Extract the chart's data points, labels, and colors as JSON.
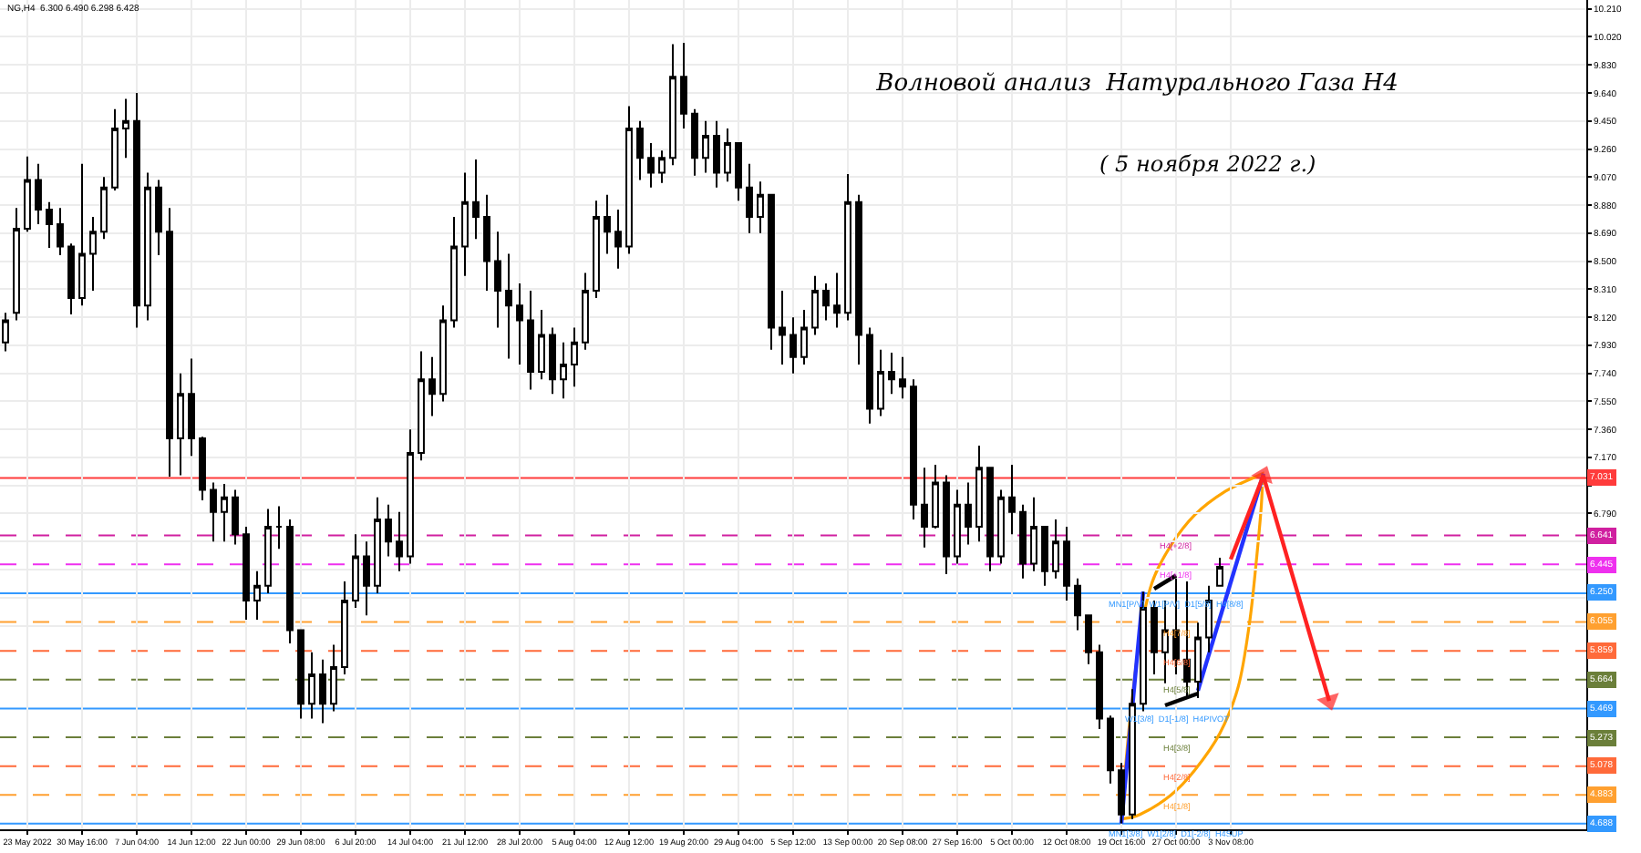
{
  "chart_data": {
    "type": "candlestick",
    "title": "Волновой анализ  Натурального Газа H4",
    "subtitle": "( 5 ноября 2022 г.)",
    "color": "#000000",
    "annotations": [
      "NG,H4  6.300 6.490 6.298 6.428",
      {
        "text": "H4[+2/8]",
        "y": 6.641
      },
      {
        "text": "H4[+1/8]",
        "y": 6.445
      },
      {
        "text": "MN1[P/V]  W1[P/V]  D1[5/8]  H4[8/8]",
        "y": 6.25
      },
      {
        "text": "H4[7/8]",
        "y": 6.055
      },
      {
        "text": "H4[6/8]",
        "y": 5.859
      },
      {
        "text": "H4[5/8]",
        "y": 5.664
      },
      {
        "text": "W1[3/8]  D1[-1/8]  H4PIVOT",
        "y": 5.469
      },
      {
        "text": "H4[3/8]",
        "y": 5.273
      },
      {
        "text": "H4[2/8]",
        "y": 5.078
      },
      {
        "text": "H4[1/8]",
        "y": 4.883
      },
      {
        "text": "MN1[3/8]  W1[2/8]  D1[-2/8]  H4SUP",
        "y": 4.688
      }
    ],
    "categories": [
      null,
      null,
      "23 May 2022",
      null,
      null,
      null,
      null,
      "30 May 16:00",
      null,
      null,
      null,
      null,
      "7 Jun 04:00",
      null,
      null,
      null,
      null,
      "14 Jun 12:00",
      null,
      null,
      null,
      null,
      "22 Jun 00:00",
      null,
      null,
      null,
      null,
      "29 Jun 08:00",
      null,
      null,
      null,
      null,
      "6 Jul 20:00",
      null,
      null,
      null,
      null,
      "14 Jul 04:00",
      null,
      null,
      null,
      null,
      "21 Jul 12:00",
      null,
      null,
      null,
      null,
      "28 Jul 20:00",
      null,
      null,
      null,
      null,
      "5 Aug 04:00",
      null,
      null,
      null,
      null,
      "12 Aug 12:00",
      null,
      null,
      null,
      null,
      "19 Aug 20:00",
      null,
      null,
      null,
      null,
      "29 Aug 04:00",
      null,
      null,
      null,
      null,
      "5 Sep 12:00",
      null,
      null,
      null,
      null,
      "13 Sep 00:00",
      null,
      null,
      null,
      null,
      "20 Sep 08:00",
      null,
      null,
      null,
      null,
      "27 Sep 16:00",
      null,
      null,
      null,
      null,
      "5 Oct 00:00",
      null,
      null,
      null,
      null,
      "12 Oct 08:00",
      null,
      null,
      null,
      null,
      "19 Oct 16:00",
      null,
      null,
      null,
      null,
      "27 Oct 00:00",
      null,
      null,
      null,
      null,
      "3 Nov 08:00",
      null,
      null,
      null,
      null,
      null,
      null,
      null,
      null,
      null,
      null,
      null,
      null,
      null,
      null,
      null,
      null,
      null,
      null,
      null,
      null,
      null,
      null,
      null,
      null,
      null,
      null,
      null,
      null,
      null,
      null,
      null,
      null
    ],
    "ohlc": [
      [
        7.95,
        8.15,
        7.89,
        8.1
      ],
      [
        8.15,
        8.86,
        8.1,
        8.72
      ],
      [
        8.72,
        9.21,
        8.7,
        9.05
      ],
      [
        9.05,
        9.16,
        8.75,
        8.85
      ],
      [
        8.85,
        8.9,
        8.59,
        8.75
      ],
      [
        8.75,
        8.86,
        8.54,
        8.6
      ],
      [
        8.6,
        8.62,
        8.14,
        8.25
      ],
      [
        8.25,
        9.16,
        8.2,
        8.55
      ],
      [
        8.55,
        8.8,
        8.3,
        8.7
      ],
      [
        8.7,
        9.07,
        8.65,
        9.0
      ],
      [
        9.0,
        9.53,
        8.98,
        9.4
      ],
      [
        9.4,
        9.6,
        9.2,
        9.45
      ],
      [
        9.45,
        9.64,
        8.05,
        8.2
      ],
      [
        8.2,
        9.1,
        8.1,
        9.0
      ],
      [
        9.0,
        9.05,
        8.54,
        8.7
      ],
      [
        8.7,
        8.86,
        7.04,
        7.3
      ],
      [
        7.3,
        7.74,
        7.05,
        7.6
      ],
      [
        7.6,
        7.84,
        7.18,
        7.3
      ],
      [
        7.3,
        7.31,
        6.88,
        6.95
      ],
      [
        6.95,
        7.0,
        6.6,
        6.8
      ],
      [
        6.8,
        6.99,
        6.6,
        6.9
      ],
      [
        6.9,
        6.95,
        6.58,
        6.65
      ],
      [
        6.65,
        6.7,
        6.07,
        6.2
      ],
      [
        6.2,
        6.4,
        6.07,
        6.3
      ],
      [
        6.3,
        6.82,
        6.25,
        6.7
      ],
      [
        6.7,
        6.84,
        6.55,
        6.7
      ],
      [
        6.7,
        6.75,
        5.91,
        6.0
      ],
      [
        6.0,
        6.0,
        5.4,
        5.5
      ],
      [
        5.5,
        5.85,
        5.4,
        5.7
      ],
      [
        5.7,
        5.8,
        5.37,
        5.5
      ],
      [
        5.5,
        5.9,
        5.45,
        5.75
      ],
      [
        5.75,
        6.33,
        5.7,
        6.2
      ],
      [
        6.2,
        6.65,
        6.15,
        6.5
      ],
      [
        6.5,
        6.6,
        6.1,
        6.3
      ],
      [
        6.3,
        6.9,
        6.25,
        6.75
      ],
      [
        6.75,
        6.85,
        6.5,
        6.6
      ],
      [
        6.6,
        6.8,
        6.4,
        6.5
      ],
      [
        6.5,
        7.36,
        6.45,
        7.2
      ],
      [
        7.2,
        7.89,
        7.15,
        7.7
      ],
      [
        7.7,
        7.85,
        7.45,
        7.6
      ],
      [
        7.6,
        8.2,
        7.55,
        8.1
      ],
      [
        8.1,
        8.8,
        8.05,
        8.6
      ],
      [
        8.6,
        9.1,
        8.4,
        8.9
      ],
      [
        8.9,
        9.19,
        8.65,
        8.8
      ],
      [
        8.8,
        8.95,
        8.3,
        8.5
      ],
      [
        8.5,
        8.7,
        8.05,
        8.3
      ],
      [
        8.3,
        8.55,
        7.84,
        8.2
      ],
      [
        8.2,
        8.35,
        7.8,
        8.1
      ],
      [
        8.1,
        8.3,
        7.63,
        7.75
      ],
      [
        7.75,
        8.17,
        7.7,
        8.0
      ],
      [
        8.0,
        8.05,
        7.6,
        7.7
      ],
      [
        7.7,
        7.95,
        7.57,
        7.8
      ],
      [
        7.8,
        8.05,
        7.65,
        7.95
      ],
      [
        7.95,
        8.42,
        7.9,
        8.3
      ],
      [
        8.3,
        8.91,
        8.25,
        8.8
      ],
      [
        8.8,
        8.95,
        8.55,
        8.7
      ],
      [
        8.7,
        8.85,
        8.45,
        8.6
      ],
      [
        8.6,
        9.55,
        8.55,
        9.4
      ],
      [
        9.4,
        9.45,
        9.05,
        9.2
      ],
      [
        9.2,
        9.3,
        9.0,
        9.1
      ],
      [
        9.1,
        9.25,
        9.03,
        9.2
      ],
      [
        9.2,
        9.97,
        9.15,
        9.75
      ],
      [
        9.75,
        9.98,
        9.4,
        9.5
      ],
      [
        9.5,
        9.53,
        9.08,
        9.2
      ],
      [
        9.2,
        9.45,
        9.1,
        9.35
      ],
      [
        9.35,
        9.45,
        9.0,
        9.1
      ],
      [
        9.1,
        9.4,
        9.04,
        9.3
      ],
      [
        9.3,
        9.3,
        8.91,
        9.0
      ],
      [
        9.0,
        9.16,
        8.69,
        8.8
      ],
      [
        8.8,
        9.04,
        8.69,
        8.95
      ],
      [
        8.95,
        8.95,
        7.9,
        8.05
      ],
      [
        8.05,
        8.3,
        7.8,
        8.0
      ],
      [
        8.0,
        8.12,
        7.74,
        7.85
      ],
      [
        7.85,
        8.17,
        7.8,
        8.05
      ],
      [
        8.05,
        8.4,
        8.0,
        8.3
      ],
      [
        8.3,
        8.35,
        8.1,
        8.2
      ],
      [
        8.2,
        8.42,
        8.05,
        8.15
      ],
      [
        8.15,
        9.09,
        8.1,
        8.9
      ],
      [
        8.9,
        8.95,
        7.8,
        8.0
      ],
      [
        8.0,
        8.05,
        7.4,
        7.5
      ],
      [
        7.5,
        7.9,
        7.45,
        7.75
      ],
      [
        7.75,
        7.88,
        7.6,
        7.7
      ],
      [
        7.7,
        7.85,
        7.57,
        7.65
      ],
      [
        7.65,
        7.7,
        6.75,
        6.85
      ],
      [
        6.85,
        7.1,
        6.56,
        6.7
      ],
      [
        6.7,
        7.12,
        6.69,
        7.0
      ],
      [
        7.0,
        7.05,
        6.38,
        6.5
      ],
      [
        6.5,
        6.95,
        6.45,
        6.85
      ],
      [
        6.85,
        7.0,
        6.58,
        6.7
      ],
      [
        6.7,
        7.25,
        6.6,
        7.1
      ],
      [
        7.1,
        7.1,
        6.4,
        6.5
      ],
      [
        6.5,
        6.95,
        6.45,
        6.9
      ],
      [
        6.9,
        7.12,
        6.65,
        6.8
      ],
      [
        6.8,
        6.85,
        6.35,
        6.45
      ],
      [
        6.45,
        6.9,
        6.4,
        6.7
      ],
      [
        6.7,
        6.7,
        6.3,
        6.4
      ],
      [
        6.4,
        6.75,
        6.35,
        6.6
      ],
      [
        6.6,
        6.7,
        6.2,
        6.3
      ],
      [
        6.3,
        6.35,
        6.0,
        6.1
      ],
      [
        6.1,
        6.1,
        5.77,
        5.85
      ],
      [
        5.85,
        5.9,
        5.33,
        5.4
      ],
      [
        5.4,
        5.42,
        4.96,
        5.05
      ],
      [
        5.05,
        5.1,
        4.69,
        4.75
      ],
      [
        4.75,
        5.6,
        4.72,
        5.5
      ],
      [
        5.5,
        6.26,
        5.45,
        6.15
      ],
      [
        6.15,
        6.2,
        5.7,
        5.85
      ],
      [
        5.85,
        6.2,
        5.64,
        6.0
      ],
      [
        6.0,
        6.35,
        5.7,
        5.8
      ],
      [
        5.8,
        6.33,
        5.55,
        5.65
      ],
      [
        5.65,
        6.05,
        5.54,
        5.95
      ],
      [
        5.95,
        6.3,
        5.85,
        6.2
      ],
      [
        6.3,
        6.49,
        6.298,
        6.428
      ],
      null,
      null,
      null,
      null,
      null,
      null,
      null,
      null,
      null,
      null,
      null,
      null,
      null,
      null,
      null,
      null,
      null,
      null,
      null,
      null,
      null,
      null,
      null,
      null,
      null,
      null,
      null,
      null,
      null,
      null,
      null,
      null,
      null
    ],
    "ylim": [
      4.65,
      10.27
    ],
    "yticks": [
      {
        "value": 10.21,
        "label": "10.210"
      },
      {
        "value": 10.02,
        "label": "10.020"
      },
      {
        "value": 9.83,
        "label": "9.830"
      },
      {
        "value": 9.64,
        "label": "9.640"
      },
      {
        "value": 9.45,
        "label": "9.450"
      },
      {
        "value": 9.26,
        "label": "9.260"
      },
      {
        "value": 9.07,
        "label": "9.070"
      },
      {
        "value": 8.88,
        "label": "8.880"
      },
      {
        "value": 8.69,
        "label": "8.690"
      },
      {
        "value": 8.5,
        "label": "8.500"
      },
      {
        "value": 8.31,
        "label": "8.310"
      },
      {
        "value": 8.12,
        "label": "8.120"
      },
      {
        "value": 7.93,
        "label": "7.930"
      },
      {
        "value": 7.74,
        "label": "7.740"
      },
      {
        "value": 7.55,
        "label": "7.550"
      },
      {
        "value": 7.36,
        "label": "7.360"
      },
      {
        "value": 7.17,
        "label": "7.170"
      },
      {
        "value": 6.98,
        "label": null
      },
      {
        "value": 6.79,
        "label": "6.790"
      },
      {
        "value": 6.6,
        "label": null
      },
      {
        "value": 6.41,
        "label": null
      },
      {
        "value": 6.22,
        "label": null
      },
      {
        "value": 6.03,
        "label": null
      }
    ],
    "grid": true,
    "ref_lines": [
      {
        "axis": "y",
        "value": 7.031,
        "label": "7.031",
        "color": "#ff3b3b",
        "line_style": "solid"
      },
      {
        "axis": "y",
        "value": 6.641,
        "label": "6.641",
        "color": "#d020a0",
        "line_style": "dashed"
      },
      {
        "axis": "y",
        "value": 6.445,
        "label": "6.445",
        "color": "#ee30ee",
        "line_style": "dashed"
      },
      {
        "axis": "y",
        "value": 6.25,
        "label": "6.250",
        "color": "#3399ff",
        "line_style": "solid"
      },
      {
        "axis": "y",
        "value": 6.055,
        "label": "6.055",
        "color": "#ffa030",
        "line_style": "dashed"
      },
      {
        "axis": "y",
        "value": 5.859,
        "label": "5.859",
        "color": "#ff6a3a",
        "line_style": "dashed"
      },
      {
        "axis": "y",
        "value": 5.664,
        "label": "5.664",
        "color": "#6b7f3a",
        "line_style": "dashed"
      },
      {
        "axis": "y",
        "value": 5.469,
        "label": "5.469",
        "color": "#3399ff",
        "line_style": "solid"
      },
      {
        "axis": "y",
        "value": 5.273,
        "label": "5.273",
        "color": "#6b7f3a",
        "line_style": "dashed"
      },
      {
        "axis": "y",
        "value": 5.078,
        "label": "5.078",
        "color": "#ff6a3a",
        "line_style": "dashed"
      },
      {
        "axis": "y",
        "value": 4.883,
        "label": "4.883",
        "color": "#ffa030",
        "line_style": "dashed"
      },
      {
        "axis": "y",
        "value": 4.688,
        "label": "4.688",
        "color": "#3399ff",
        "line_style": "solid"
      }
    ],
    "series": [
      {
        "type": "line",
        "color": "#2233ff",
        "values": [
          null,
          null,
          null,
          null,
          null,
          null,
          null,
          null,
          null,
          null,
          null,
          null,
          null,
          null,
          null,
          null,
          null,
          null,
          null,
          null,
          null,
          null,
          null,
          null,
          null,
          null,
          null,
          null,
          null,
          null,
          null,
          null,
          null,
          null,
          null,
          null,
          null,
          null,
          null,
          null,
          null,
          null,
          null,
          null,
          null,
          null,
          null,
          null,
          null,
          null,
          null,
          null,
          null,
          null,
          null,
          null,
          null,
          null,
          null,
          null,
          null,
          null,
          null,
          null,
          null,
          null,
          null,
          null,
          null,
          null,
          null,
          null,
          null,
          null,
          null,
          null,
          null,
          null,
          null,
          null,
          null,
          null,
          null,
          null,
          null,
          null,
          null,
          null,
          null,
          null,
          null,
          null,
          null,
          null,
          null,
          null,
          null,
          null,
          null,
          null,
          null,
          null,
          4.69,
          null,
          6.26,
          null,
          null,
          null,
          null,
          null,
          null,
          null,
          null,
          null,
          null,
          null,
          null,
          null,
          null,
          null,
          null,
          null,
          null,
          null,
          null,
          null,
          null,
          null,
          null,
          null,
          null,
          null,
          null,
          null,
          null,
          null,
          null,
          null,
          null,
          null,
          null,
          null,
          null,
          null,
          null
        ]
      },
      {
        "type": "line",
        "color": "#2233ff",
        "values": [
          null,
          null,
          null,
          null,
          null,
          null,
          null,
          null,
          null,
          null,
          null,
          null,
          null,
          null,
          null,
          null,
          null,
          null,
          null,
          null,
          null,
          null,
          null,
          null,
          null,
          null,
          null,
          null,
          null,
          null,
          null,
          null,
          null,
          null,
          null,
          null,
          null,
          null,
          null,
          null,
          null,
          null,
          null,
          null,
          null,
          null,
          null,
          null,
          null,
          null,
          null,
          null,
          null,
          null,
          null,
          null,
          null,
          null,
          null,
          null,
          null,
          null,
          null,
          null,
          null,
          null,
          null,
          null,
          null,
          null,
          null,
          null,
          null,
          null,
          null,
          null,
          null,
          null,
          null,
          null,
          null,
          null,
          null,
          null,
          null,
          null,
          null,
          null,
          null,
          null,
          null,
          null,
          null,
          null,
          null,
          null,
          null,
          null,
          null,
          null,
          null,
          null,
          null,
          null,
          null,
          null,
          null,
          null,
          null,
          5.59,
          null,
          null,
          null,
          null,
          null,
          7.06,
          null,
          null,
          null,
          null,
          null,
          null,
          null,
          null,
          null,
          null,
          null,
          null,
          null,
          null,
          null,
          null,
          null,
          null,
          null,
          null,
          null,
          null,
          null,
          null,
          null,
          null,
          null,
          null,
          null
        ]
      },
      {
        "type": "line",
        "color": "#000000",
        "values": [
          null,
          null,
          null,
          null,
          null,
          null,
          null,
          null,
          null,
          null,
          null,
          null,
          null,
          null,
          null,
          null,
          null,
          null,
          null,
          null,
          null,
          null,
          null,
          null,
          null,
          null,
          null,
          null,
          null,
          null,
          null,
          null,
          null,
          null,
          null,
          null,
          null,
          null,
          null,
          null,
          null,
          null,
          null,
          null,
          null,
          null,
          null,
          null,
          null,
          null,
          null,
          null,
          null,
          null,
          null,
          null,
          null,
          null,
          null,
          null,
          null,
          null,
          null,
          null,
          null,
          null,
          null,
          null,
          null,
          null,
          null,
          null,
          null,
          null,
          null,
          null,
          null,
          null,
          null,
          null,
          null,
          null,
          null,
          null,
          null,
          null,
          null,
          null,
          null,
          null,
          null,
          null,
          null,
          null,
          null,
          null,
          null,
          null,
          null,
          null,
          null,
          null,
          null,
          null,
          null,
          6.28,
          null,
          6.37,
          null,
          null,
          null,
          null,
          null,
          null,
          null,
          null,
          null,
          null,
          null,
          null,
          null,
          null,
          null,
          null,
          null,
          null,
          null,
          null,
          null,
          null,
          null,
          null,
          null,
          null,
          null,
          null,
          null,
          null,
          null,
          null,
          null,
          null,
          null,
          null,
          null
        ]
      },
      {
        "type": "line",
        "color": "#000000",
        "values": [
          null,
          null,
          null,
          null,
          null,
          null,
          null,
          null,
          null,
          null,
          null,
          null,
          null,
          null,
          null,
          null,
          null,
          null,
          null,
          null,
          null,
          null,
          null,
          null,
          null,
          null,
          null,
          null,
          null,
          null,
          null,
          null,
          null,
          null,
          null,
          null,
          null,
          null,
          null,
          null,
          null,
          null,
          null,
          null,
          null,
          null,
          null,
          null,
          null,
          null,
          null,
          null,
          null,
          null,
          null,
          null,
          null,
          null,
          null,
          null,
          null,
          null,
          null,
          null,
          null,
          null,
          null,
          null,
          null,
          null,
          null,
          null,
          null,
          null,
          null,
          null,
          null,
          null,
          null,
          null,
          null,
          null,
          null,
          null,
          null,
          null,
          null,
          null,
          null,
          null,
          null,
          null,
          null,
          null,
          null,
          null,
          null,
          null,
          null,
          null,
          null,
          null,
          null,
          null,
          null,
          null,
          5.49,
          null,
          null,
          5.57,
          null,
          null,
          null,
          null,
          null,
          null,
          null,
          null,
          null,
          null,
          null,
          null,
          null,
          null,
          null,
          null,
          null,
          null,
          null,
          null,
          null,
          null,
          null,
          null,
          null,
          null,
          null,
          null,
          null,
          null,
          null,
          null,
          null,
          null,
          null
        ]
      },
      {
        "type": "line",
        "color": "#ff2222",
        "marker": "triangle",
        "values": [
          null,
          null,
          null,
          null,
          null,
          null,
          null,
          null,
          null,
          null,
          null,
          null,
          null,
          null,
          null,
          null,
          null,
          null,
          null,
          null,
          null,
          null,
          null,
          null,
          null,
          null,
          null,
          null,
          null,
          null,
          null,
          null,
          null,
          null,
          null,
          null,
          null,
          null,
          null,
          null,
          null,
          null,
          null,
          null,
          null,
          null,
          null,
          null,
          null,
          null,
          null,
          null,
          null,
          null,
          null,
          null,
          null,
          null,
          null,
          null,
          null,
          null,
          null,
          null,
          null,
          null,
          null,
          null,
          null,
          null,
          null,
          null,
          null,
          null,
          null,
          null,
          null,
          null,
          null,
          null,
          null,
          null,
          null,
          null,
          null,
          null,
          null,
          null,
          null,
          null,
          null,
          null,
          null,
          null,
          null,
          null,
          null,
          null,
          null,
          null,
          null,
          null,
          null,
          null,
          null,
          null,
          null,
          null,
          null,
          null,
          null,
          null,
          6.48,
          null,
          null,
          7.05,
          null,
          null,
          null,
          null,
          null,
          null,
          null,
          null,
          null,
          null,
          null,
          null,
          null,
          null,
          null,
          null,
          null,
          null,
          null,
          null,
          null,
          null,
          null,
          null,
          null,
          null,
          null,
          null,
          null
        ]
      },
      {
        "type": "line",
        "color": "#ff2222",
        "marker": "triangle",
        "values": [
          null,
          null,
          null,
          null,
          null,
          null,
          null,
          null,
          null,
          null,
          null,
          null,
          null,
          null,
          null,
          null,
          null,
          null,
          null,
          null,
          null,
          null,
          null,
          null,
          null,
          null,
          null,
          null,
          null,
          null,
          null,
          null,
          null,
          null,
          null,
          null,
          null,
          null,
          null,
          null,
          null,
          null,
          null,
          null,
          null,
          null,
          null,
          null,
          null,
          null,
          null,
          null,
          null,
          null,
          null,
          null,
          null,
          null,
          null,
          null,
          null,
          null,
          null,
          null,
          null,
          null,
          null,
          null,
          null,
          null,
          null,
          null,
          null,
          null,
          null,
          null,
          null,
          null,
          null,
          null,
          null,
          null,
          null,
          null,
          null,
          null,
          null,
          null,
          null,
          null,
          null,
          null,
          null,
          null,
          null,
          null,
          null,
          null,
          null,
          null,
          null,
          null,
          null,
          null,
          null,
          null,
          null,
          null,
          null,
          null,
          null,
          null,
          null,
          null,
          null,
          7.04,
          null,
          null,
          null,
          null,
          null,
          5.52,
          null,
          null,
          null,
          null,
          null,
          null,
          null,
          null,
          null,
          null,
          null,
          null,
          null,
          null,
          null,
          null,
          null,
          null,
          null,
          null,
          null,
          null,
          null
        ]
      }
    ]
  }
}
